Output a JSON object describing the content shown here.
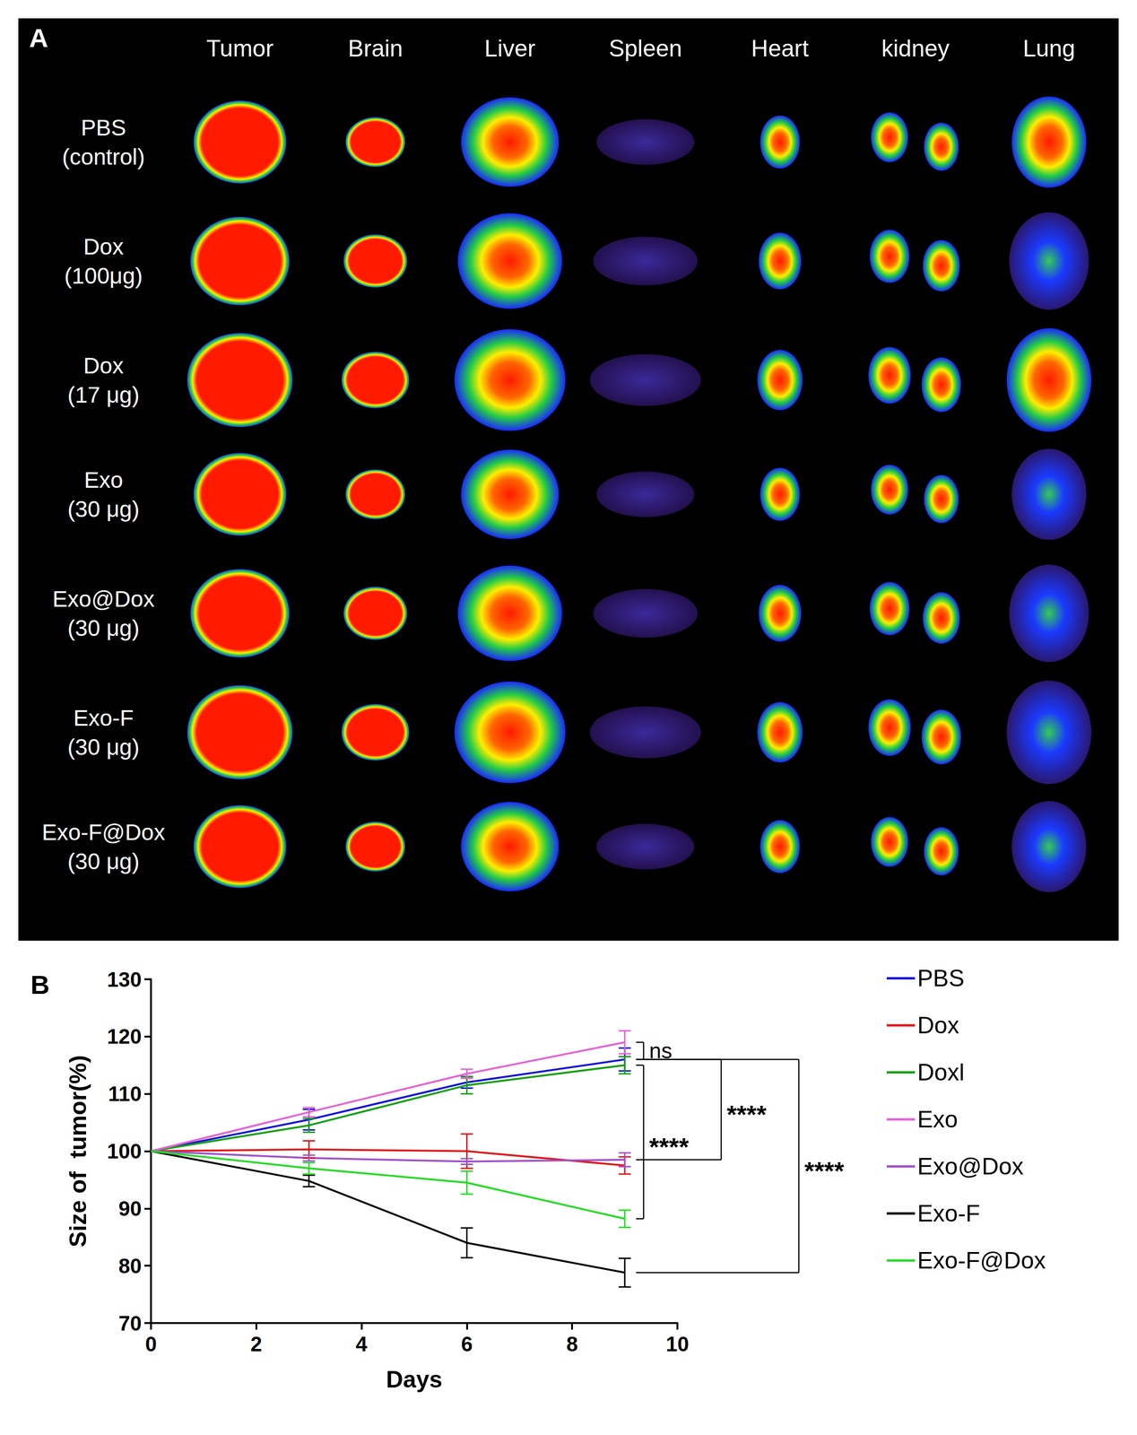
{
  "panel_a": {
    "letter": "A",
    "columns": [
      "Tumor",
      "Brain",
      "Liver",
      "Spleen",
      "Heart",
      "kidney",
      "Lung"
    ],
    "rows": [
      {
        "label": [
          "PBS",
          "(control)"
        ]
      },
      {
        "label": [
          "Dox",
          "(100μg)"
        ]
      },
      {
        "label": [
          "Dox",
          "(17 μg)"
        ]
      },
      {
        "label": [
          "Exo",
          "(30 μg)"
        ]
      },
      {
        "label": [
          "Exo@Dox",
          "(30 μg)"
        ]
      },
      {
        "label": [
          "Exo-F",
          "(30 μg)"
        ]
      },
      {
        "label": [
          "Exo-F@Dox",
          "(30 μg)"
        ]
      }
    ]
  },
  "chart_data": {
    "type": "line",
    "letter": "B",
    "xlabel": "Days",
    "ylabel": "Size of  tumor(%)",
    "x": [
      0,
      3,
      6,
      9
    ],
    "xlim": [
      0,
      10
    ],
    "xticks": [
      0,
      2,
      4,
      6,
      8,
      10
    ],
    "ylim": [
      70,
      130
    ],
    "yticks": [
      70,
      80,
      90,
      100,
      110,
      120,
      130
    ],
    "grid": false,
    "legend": "right",
    "series": [
      {
        "name": "PBS",
        "color": "#1010e0",
        "values": [
          100,
          105.5,
          112,
          116
        ],
        "errors": [
          null,
          1.8,
          1,
          2
        ]
      },
      {
        "name": "Dox",
        "color": "#e01818",
        "values": [
          100,
          100.3,
          100,
          97.5
        ],
        "errors": [
          null,
          1.5,
          3,
          1.5
        ]
      },
      {
        "name": "Doxl",
        "color": "#12a012",
        "values": [
          100,
          104.5,
          111.5,
          115
        ],
        "errors": [
          null,
          1.2,
          1.5,
          1.5
        ]
      },
      {
        "name": "Exo",
        "color": "#e860d8",
        "values": [
          100,
          106.8,
          113.5,
          119
        ],
        "errors": [
          null,
          0.8,
          0.8,
          2
        ]
      },
      {
        "name": "Exo@Dox",
        "color": "#a050d0",
        "values": [
          100,
          98.8,
          98.2,
          98.5
        ],
        "errors": [
          null,
          0.5,
          0.5,
          1.2
        ]
      },
      {
        "name": "Exo-F",
        "color": "#000000",
        "values": [
          100,
          94.8,
          84,
          78.8
        ],
        "errors": [
          null,
          1,
          2.6,
          2.5
        ]
      },
      {
        "name": "Exo-F@Dox",
        "color": "#22dd22",
        "values": [
          100,
          97,
          94.5,
          88.2
        ],
        "errors": [
          null,
          1,
          2,
          1.5
        ]
      }
    ],
    "annotations": [
      {
        "text": "ns",
        "between": [
          "Exo",
          "PBS"
        ]
      },
      {
        "text": "****",
        "between": [
          "Doxl",
          "Exo-F@Dox"
        ]
      },
      {
        "text": "****",
        "between": [
          "PBS",
          "Exo@Dox"
        ]
      },
      {
        "text": "****",
        "between": [
          "PBS",
          "Exo-F"
        ]
      }
    ]
  }
}
